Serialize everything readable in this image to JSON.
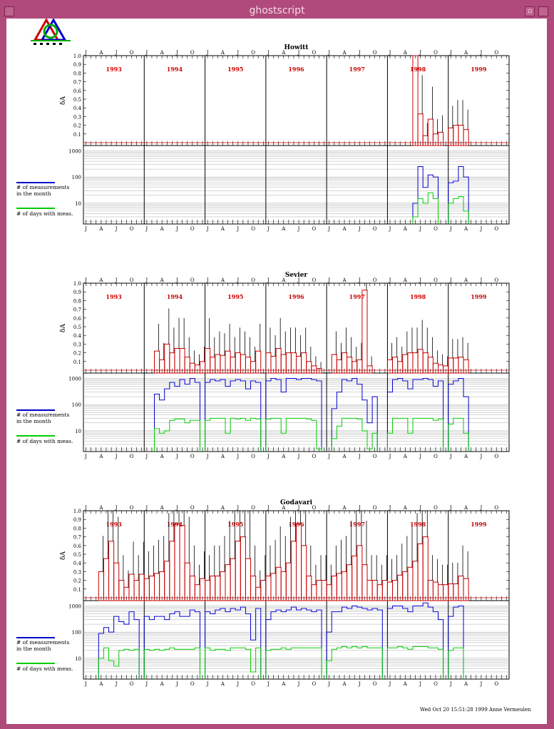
{
  "window": {
    "title": "ghostscript"
  },
  "footer": "Wed Oct 20  15:51:28 1999  Anne Vermeulen",
  "colors": {
    "titlebar": "#b04a7a",
    "bar": "#cc0000",
    "year": "#cc0000",
    "measurements": "#0000cc",
    "days": "#00cc00"
  },
  "chart_data": [
    {
      "type": "bar",
      "title": "Howitt",
      "years": [
        "1993",
        "1994",
        "1995",
        "1996",
        "1997",
        "1998",
        "1999"
      ],
      "month_labels": [
        "J",
        "A",
        "J",
        "O"
      ],
      "ylabel": "δA",
      "ylim": [
        0,
        1.0
      ],
      "yticks": [
        "0.1",
        "0.2",
        "0.3",
        "0.4",
        "0.5",
        "0.6",
        "0.7",
        "0.8",
        "0.9",
        "1.0"
      ],
      "legend": {
        "measurements": "# of measurements in the month",
        "days": "# of days with meas."
      },
      "count_ticks": [
        "10",
        "100",
        "1000"
      ],
      "delta": [
        0,
        0,
        0,
        0,
        0,
        0,
        0,
        0,
        0,
        0,
        0,
        0,
        0,
        0,
        0,
        0,
        0,
        0,
        0,
        0,
        0,
        0,
        0,
        0,
        0,
        0,
        0,
        0,
        0,
        0,
        0,
        0,
        0,
        0,
        0,
        0,
        0,
        0,
        0,
        0,
        0,
        0,
        0,
        0,
        0,
        0,
        0,
        0,
        0,
        0,
        0,
        0,
        0,
        0,
        0,
        0,
        0,
        0,
        0,
        0,
        0,
        0,
        0,
        0,
        0,
        1.0,
        0.33,
        0.08,
        0.27,
        0.1,
        0.12,
        0,
        0.17,
        0.2,
        0.2,
        0.15,
        0,
        0,
        0,
        0,
        0,
        0,
        0,
        0
      ],
      "measurements": [
        0,
        0,
        0,
        0,
        0,
        0,
        0,
        0,
        0,
        0,
        0,
        0,
        0,
        0,
        0,
        0,
        0,
        0,
        0,
        0,
        0,
        0,
        0,
        0,
        0,
        0,
        0,
        0,
        0,
        0,
        0,
        0,
        0,
        0,
        0,
        0,
        0,
        0,
        0,
        0,
        0,
        0,
        0,
        0,
        0,
        0,
        0,
        0,
        0,
        0,
        0,
        0,
        0,
        0,
        0,
        0,
        0,
        0,
        0,
        0,
        0,
        0,
        0,
        0,
        0,
        10,
        250,
        40,
        120,
        100,
        0,
        0,
        60,
        70,
        250,
        100,
        0,
        0,
        0,
        0,
        0,
        0,
        0,
        0
      ],
      "days": [
        0,
        0,
        0,
        0,
        0,
        0,
        0,
        0,
        0,
        0,
        0,
        0,
        0,
        0,
        0,
        0,
        0,
        0,
        0,
        0,
        0,
        0,
        0,
        0,
        0,
        0,
        0,
        0,
        0,
        0,
        0,
        0,
        0,
        0,
        0,
        0,
        0,
        0,
        0,
        0,
        0,
        0,
        0,
        0,
        0,
        0,
        0,
        0,
        0,
        0,
        0,
        0,
        0,
        0,
        0,
        0,
        0,
        0,
        0,
        0,
        0,
        0,
        0,
        0,
        0,
        3,
        15,
        10,
        25,
        15,
        0,
        0,
        10,
        15,
        18,
        5,
        0,
        0,
        0,
        0,
        0,
        0,
        0,
        0
      ]
    },
    {
      "type": "bar",
      "title": "Sevier",
      "years": [
        "1993",
        "1994",
        "1995",
        "1996",
        "1997",
        "1998",
        "1999"
      ],
      "month_labels": [
        "J",
        "A",
        "J",
        "O"
      ],
      "ylabel": "δA",
      "ylim": [
        0,
        1.0
      ],
      "yticks": [
        "0.1",
        "0.2",
        "0.3",
        "0.4",
        "0.5",
        "0.6",
        "0.7",
        "0.8",
        "0.9",
        "1.0"
      ],
      "legend": {
        "measurements": "# of measurements in the month",
        "days": "# of days with meas."
      },
      "count_ticks": [
        "10",
        "100",
        "1000"
      ],
      "delta": [
        0,
        0,
        0,
        0,
        0,
        0,
        0,
        0,
        0,
        0,
        0,
        0,
        0,
        0,
        0.22,
        0.12,
        0.3,
        0.2,
        0.25,
        0.25,
        0.15,
        0.08,
        0.06,
        0.1,
        0.25,
        0.15,
        0.18,
        0.17,
        0.22,
        0.15,
        0.2,
        0.18,
        0.15,
        0.1,
        0.22,
        0,
        0.2,
        0.16,
        0.25,
        0.18,
        0.2,
        0.2,
        0.16,
        0.2,
        0.1,
        0.05,
        0.02,
        0,
        0,
        0.18,
        0.12,
        0.2,
        0.15,
        0.1,
        0.12,
        0.92,
        0.05,
        0,
        0,
        0,
        0.12,
        0.15,
        0.1,
        0.18,
        0.2,
        0.2,
        0.24,
        0.2,
        0.15,
        0.08,
        0.06,
        0.05,
        0.14,
        0.14,
        0.15,
        0.12,
        0,
        0,
        0,
        0,
        0,
        0,
        0,
        0
      ],
      "measurements": [
        0,
        0,
        0,
        0,
        0,
        0,
        0,
        0,
        0,
        0,
        0,
        0,
        0,
        0,
        250,
        150,
        400,
        700,
        500,
        900,
        600,
        1000,
        700,
        0,
        700,
        900,
        800,
        900,
        500,
        800,
        900,
        800,
        400,
        800,
        700,
        0,
        800,
        1000,
        900,
        300,
        1000,
        1000,
        900,
        1000,
        1000,
        900,
        800,
        0,
        0,
        70,
        300,
        900,
        800,
        1000,
        600,
        150,
        20,
        200,
        0,
        0,
        300,
        900,
        1000,
        800,
        400,
        900,
        900,
        1000,
        900,
        500,
        800,
        0,
        600,
        800,
        1000,
        200,
        0,
        0,
        0,
        0,
        0,
        0,
        0,
        0
      ],
      "days": [
        0,
        0,
        0,
        0,
        0,
        0,
        0,
        0,
        0,
        0,
        0,
        0,
        0,
        0,
        12,
        8,
        10,
        25,
        28,
        28,
        20,
        25,
        25,
        0,
        25,
        30,
        30,
        30,
        8,
        30,
        28,
        30,
        25,
        30,
        28,
        0,
        28,
        30,
        30,
        8,
        30,
        30,
        30,
        30,
        28,
        25,
        2,
        0,
        0,
        5,
        15,
        30,
        30,
        30,
        28,
        10,
        2,
        8,
        0,
        0,
        8,
        30,
        30,
        30,
        8,
        30,
        30,
        30,
        30,
        25,
        28,
        0,
        18,
        30,
        30,
        8,
        0,
        0,
        0,
        0,
        0,
        0,
        0,
        0
      ]
    },
    {
      "type": "bar",
      "title": "Godavari",
      "years": [
        "1993",
        "1994",
        "1995",
        "1996",
        "1997",
        "1998",
        "1999"
      ],
      "month_labels": [
        "J",
        "A",
        "J",
        "O"
      ],
      "ylabel": "δA",
      "ylim": [
        0,
        1.0
      ],
      "yticks": [
        "0.1",
        "0.2",
        "0.3",
        "0.4",
        "0.5",
        "0.6",
        "0.7",
        "0.8",
        "0.9",
        "1.0"
      ],
      "legend": {
        "measurements": "# of measurements in the month",
        "days": "# of days with meas."
      },
      "count_ticks": [
        "10",
        "100",
        "1000"
      ],
      "delta": [
        0,
        0,
        0,
        0.3,
        0.45,
        0.65,
        0.4,
        0.2,
        0.12,
        0.27,
        0.2,
        0.27,
        0.22,
        0.25,
        0.28,
        0.3,
        0.42,
        0.65,
        0.85,
        0.83,
        0.4,
        0.25,
        0.15,
        0.22,
        0.2,
        0.25,
        0.25,
        0.3,
        0.38,
        0.45,
        0.65,
        0.7,
        0.45,
        0.25,
        0.12,
        0.2,
        0.25,
        0.28,
        0.35,
        0.3,
        0.4,
        0.65,
        0.85,
        0.6,
        0.25,
        0.15,
        0.2,
        0.2,
        0.15,
        0.25,
        0.28,
        0.3,
        0.38,
        0.48,
        0.6,
        0.38,
        0.2,
        0.2,
        0.15,
        0.2,
        0.18,
        0.2,
        0.26,
        0.3,
        0.35,
        0.42,
        0.62,
        0.7,
        0.2,
        0.18,
        0.15,
        0.15,
        0.16,
        0.16,
        0.25,
        0.22,
        0,
        0,
        0,
        0,
        0,
        0,
        0,
        0
      ],
      "measurements": [
        0,
        0,
        0,
        90,
        150,
        100,
        400,
        250,
        200,
        600,
        300,
        0,
        400,
        300,
        400,
        400,
        300,
        500,
        600,
        400,
        400,
        700,
        600,
        0,
        600,
        500,
        700,
        800,
        600,
        800,
        700,
        900,
        500,
        50,
        800,
        0,
        300,
        600,
        700,
        600,
        700,
        900,
        700,
        800,
        700,
        600,
        700,
        0,
        100,
        600,
        600,
        900,
        800,
        1000,
        900,
        800,
        700,
        800,
        700,
        0,
        800,
        1000,
        1000,
        800,
        600,
        1000,
        1000,
        1300,
        900,
        600,
        300,
        0,
        400,
        900,
        1000,
        0,
        0,
        0,
        0,
        0,
        0,
        0,
        0,
        0
      ],
      "days": [
        0,
        0,
        0,
        10,
        25,
        8,
        5,
        20,
        22,
        20,
        22,
        0,
        22,
        20,
        22,
        20,
        22,
        25,
        22,
        22,
        22,
        22,
        25,
        0,
        25,
        20,
        22,
        22,
        20,
        25,
        25,
        25,
        22,
        3,
        25,
        0,
        20,
        22,
        22,
        25,
        22,
        25,
        25,
        25,
        25,
        25,
        25,
        0,
        8,
        22,
        25,
        28,
        25,
        28,
        25,
        28,
        25,
        25,
        25,
        0,
        25,
        25,
        28,
        25,
        22,
        28,
        28,
        28,
        25,
        25,
        22,
        0,
        20,
        25,
        25,
        0,
        0,
        0,
        0,
        0,
        0,
        0,
        0,
        0
      ]
    }
  ]
}
